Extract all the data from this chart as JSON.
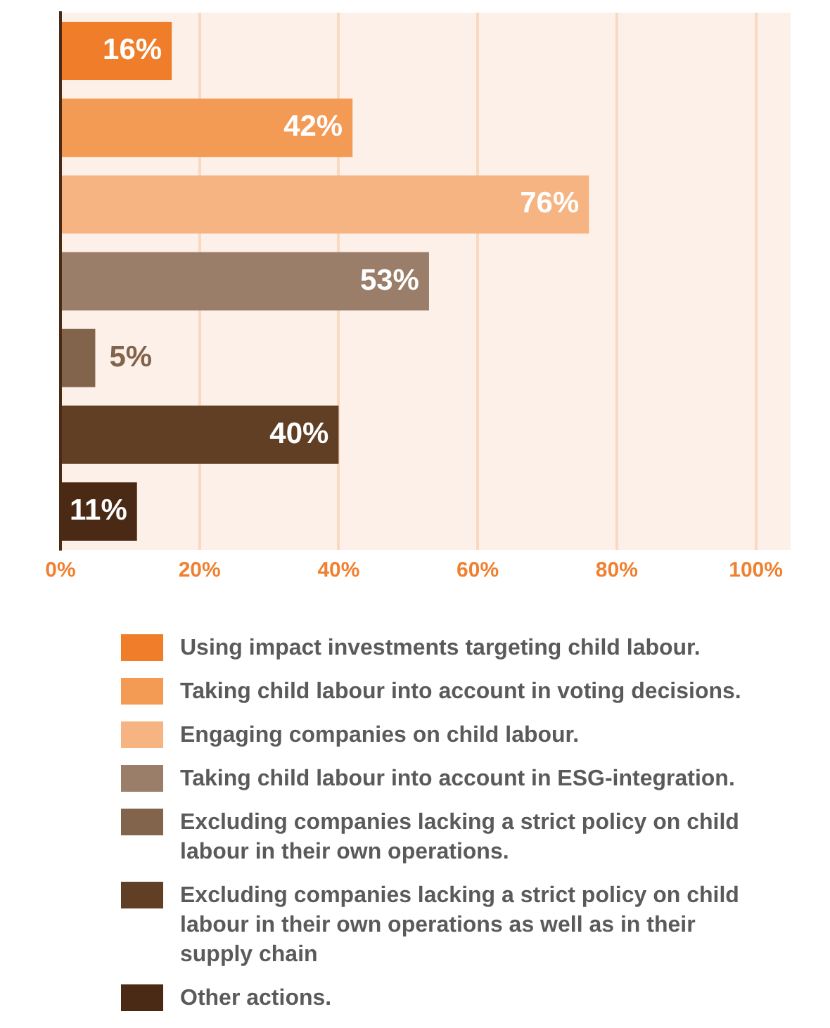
{
  "chart_data": {
    "type": "bar",
    "orientation": "horizontal",
    "categories": [
      null,
      null,
      null,
      null,
      null,
      null,
      null
    ],
    "series": [
      {
        "name": "Using impact investments targeting child labour.",
        "color": "#ef7d2a",
        "values": [
          16,
          null,
          null,
          null,
          null,
          null,
          null
        ],
        "value_labels": [
          "16%",
          null,
          null,
          null,
          null,
          null,
          null
        ]
      },
      {
        "name": "Taking child labour into account in voting decisions.",
        "color": "#f39a55",
        "values": [
          null,
          42,
          null,
          null,
          null,
          null,
          null
        ],
        "value_labels": [
          null,
          "42%",
          null,
          null,
          null,
          null,
          null
        ]
      },
      {
        "name": "Engaging companies on child labour.",
        "color": "#f6b482",
        "values": [
          null,
          null,
          76,
          null,
          null,
          null,
          null
        ],
        "value_labels": [
          null,
          null,
          "76%",
          null,
          null,
          null,
          null
        ]
      },
      {
        "name": "Taking child labour into account in ESG-integration.",
        "color": "#9b7e69",
        "values": [
          null,
          null,
          null,
          53,
          null,
          null,
          null
        ],
        "value_labels": [
          null,
          null,
          null,
          "53%",
          null,
          null,
          null
        ]
      },
      {
        "name": "Excluding companies lacking a strict policy on child labour in their own operations.",
        "color": "#82634c",
        "values": [
          null,
          null,
          null,
          null,
          5,
          null,
          null
        ],
        "value_labels": [
          null,
          null,
          null,
          null,
          "5%",
          null,
          null
        ]
      },
      {
        "name": "Excluding companies lacking a strict policy on child labour in their own operations as well as in their supply chain",
        "color": "#603f25",
        "values": [
          null,
          null,
          null,
          null,
          null,
          40,
          null
        ],
        "value_labels": [
          null,
          null,
          null,
          null,
          null,
          "40%",
          null
        ]
      },
      {
        "name": "Other actions.",
        "color": "#4a2a14",
        "values": [
          null,
          null,
          null,
          null,
          null,
          null,
          11
        ],
        "value_labels": [
          null,
          null,
          null,
          null,
          null,
          null,
          "11%"
        ]
      }
    ],
    "xlim": [
      0,
      105
    ],
    "xticks": [
      {
        "value": 0,
        "label": "0%"
      },
      {
        "value": 20,
        "label": "20%"
      },
      {
        "value": 40,
        "label": "40%"
      },
      {
        "value": 60,
        "label": "60%"
      },
      {
        "value": 80,
        "label": "80%"
      },
      {
        "value": 100,
        "label": "100%"
      }
    ],
    "grid": "x",
    "legend": "bottom"
  }
}
